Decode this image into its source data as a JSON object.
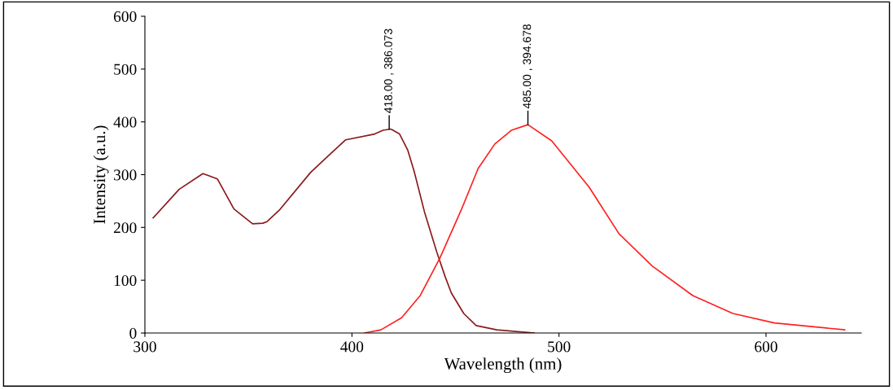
{
  "chart_data": {
    "type": "line",
    "xlabel": "Wavelength (nm)",
    "ylabel": "Intensity (a.u.)",
    "xlim": [
      300,
      646
    ],
    "xticks": [
      300,
      400,
      500,
      600
    ],
    "ylim": [
      0,
      600
    ],
    "yticks": [
      0,
      100,
      200,
      300,
      400,
      500,
      600
    ],
    "grid": false,
    "legend": false,
    "marker": "none",
    "line_style": "solid",
    "series": [
      {
        "color": "#8b1a1a",
        "x": [
          304,
          316.5,
          328,
          335,
          343,
          352,
          357,
          359,
          365,
          380,
          387,
          397,
          411,
          415,
          418,
          419,
          423,
          427,
          430,
          435,
          441,
          445,
          448,
          454,
          460,
          470,
          488
        ],
        "values": [
          218,
          272,
          302,
          292,
          235,
          207,
          208,
          211,
          233,
          304,
          330,
          366,
          377,
          384,
          386.073,
          386,
          377,
          346,
          307,
          230,
          153,
          107,
          76,
          37,
          14,
          6,
          0
        ]
      },
      {
        "color": "#ff2020",
        "x": [
          406,
          414,
          424,
          433,
          442.5,
          453,
          461,
          469,
          477,
          485,
          496.5,
          514.6,
          529,
          545,
          564.6,
          584,
          604,
          638
        ],
        "values": [
          0,
          6,
          29,
          71,
          142,
          235,
          312,
          358,
          384,
          394.678,
          364,
          276,
          188,
          127,
          71,
          37,
          19,
          6
        ]
      }
    ],
    "annotations": [
      {
        "text": "418.00 , 386.073",
        "x": 418,
        "y": 386.073
      },
      {
        "text": "485.00 , 394.678",
        "x": 485,
        "y": 394.678
      }
    ]
  }
}
